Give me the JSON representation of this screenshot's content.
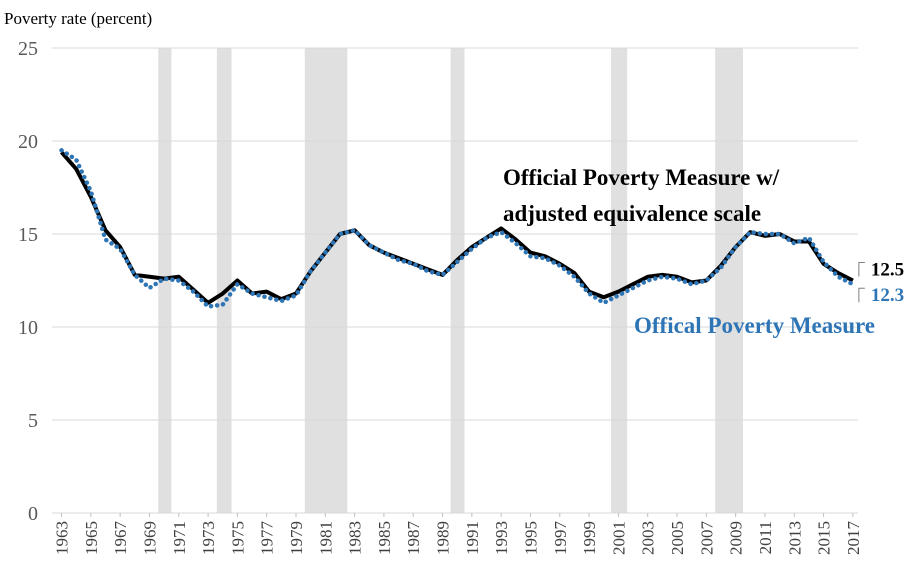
{
  "chart_data": {
    "type": "line",
    "y_axis_label": "Poverty rate (percent)",
    "x": [
      1963,
      1964,
      1965,
      1966,
      1967,
      1968,
      1969,
      1970,
      1971,
      1972,
      1973,
      1974,
      1975,
      1976,
      1977,
      1978,
      1979,
      1980,
      1981,
      1982,
      1983,
      1984,
      1985,
      1986,
      1987,
      1988,
      1989,
      1990,
      1991,
      1992,
      1993,
      1994,
      1995,
      1996,
      1997,
      1998,
      1999,
      2000,
      2001,
      2002,
      2003,
      2004,
      2005,
      2006,
      2007,
      2008,
      2009,
      2010,
      2011,
      2012,
      2013,
      2014,
      2015,
      2016,
      2017
    ],
    "series": [
      {
        "name": "Offical Poverty Measure",
        "color": "#2e75b6",
        "style": "dotted",
        "values": [
          19.5,
          19.0,
          17.3,
          14.7,
          14.2,
          12.8,
          12.1,
          12.6,
          12.5,
          11.9,
          11.1,
          11.2,
          12.3,
          11.8,
          11.6,
          11.4,
          11.7,
          13.0,
          14.0,
          15.0,
          15.2,
          14.4,
          14.0,
          13.6,
          13.4,
          13.0,
          12.8,
          13.5,
          14.2,
          14.8,
          15.1,
          14.5,
          13.8,
          13.7,
          13.3,
          12.7,
          11.8,
          11.3,
          11.7,
          12.1,
          12.5,
          12.7,
          12.6,
          12.3,
          12.5,
          13.2,
          14.3,
          15.1,
          15.0,
          15.0,
          14.5,
          14.8,
          13.5,
          12.7,
          12.3
        ]
      },
      {
        "name": "Official Poverty Measure w/ adjusted equivalence scale",
        "color": "#000000",
        "style": "solid",
        "values": [
          19.4,
          18.5,
          17.0,
          15.2,
          14.3,
          12.8,
          12.7,
          12.6,
          12.7,
          12.0,
          11.3,
          11.8,
          12.5,
          11.8,
          11.9,
          11.5,
          11.8,
          13.0,
          14.0,
          15.0,
          15.2,
          14.4,
          14.0,
          13.7,
          13.4,
          13.1,
          12.8,
          13.6,
          14.3,
          14.8,
          15.3,
          14.7,
          14.0,
          13.8,
          13.4,
          12.9,
          11.9,
          11.6,
          11.9,
          12.3,
          12.7,
          12.8,
          12.7,
          12.4,
          12.5,
          13.3,
          14.3,
          15.1,
          14.9,
          15.0,
          14.6,
          14.6,
          13.4,
          12.9,
          12.5
        ]
      }
    ],
    "recessions": [
      [
        1969.6,
        1970.5
      ],
      [
        1973.6,
        1974.6
      ],
      [
        1979.6,
        1982.5
      ],
      [
        1989.55,
        1990.5
      ],
      [
        2000.5,
        2001.6
      ],
      [
        2007.6,
        2009.5
      ]
    ],
    "recession_color": "#e0e0e0",
    "xlim": [
      1962.35,
      2017.35
    ],
    "xticks": [
      1963,
      1965,
      1967,
      1969,
      1971,
      1973,
      1975,
      1977,
      1979,
      1981,
      1983,
      1985,
      1987,
      1989,
      1991,
      1993,
      1995,
      1997,
      1999,
      2001,
      2003,
      2005,
      2007,
      2009,
      2011,
      2013,
      2015,
      2017
    ],
    "ylim": [
      0,
      25
    ],
    "yticks": [
      0,
      5,
      10,
      15,
      20,
      25
    ],
    "grid": true
  }
}
